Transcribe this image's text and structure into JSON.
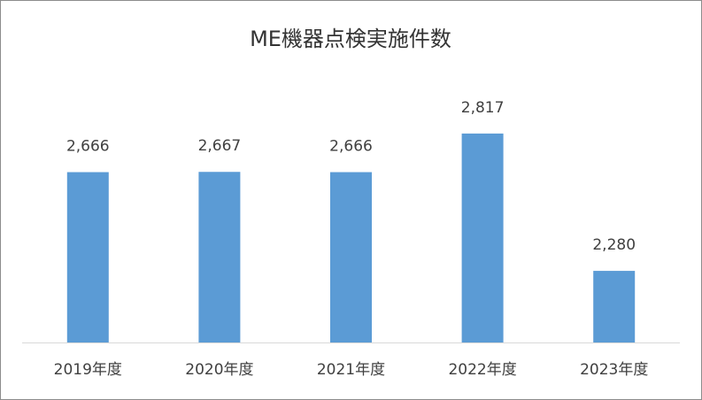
{
  "chart_data": {
    "type": "bar",
    "title": "ME機器点検実施件数",
    "categories": [
      "2019年度",
      "2020年度",
      "2021年度",
      "2022年度",
      "2023年度"
    ],
    "values": [
      2666,
      2667,
      2666,
      2817,
      2280
    ],
    "value_labels": [
      "2,666",
      "2,667",
      "2,666",
      "2,817",
      "2,280"
    ],
    "color": "#5b9bd5",
    "ylim": [
      2000,
      3000
    ]
  }
}
